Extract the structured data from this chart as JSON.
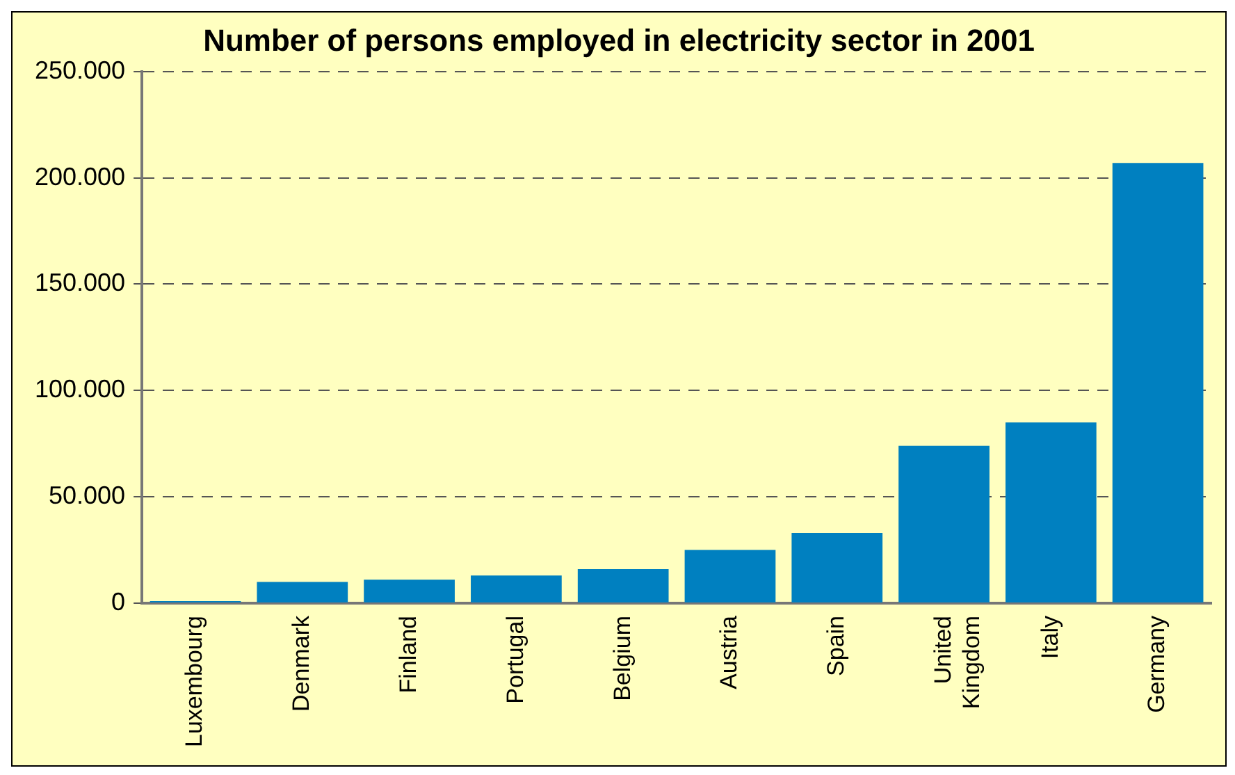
{
  "chart_data": {
    "type": "bar",
    "title": "Number of persons employed in electricity sector in 2001",
    "categories": [
      "Luxembourg",
      "Denmark",
      "Finland",
      "Portugal",
      "Belgium",
      "Austria",
      "Spain",
      "United Kingdom",
      "Italy",
      "Germany"
    ],
    "values": [
      1000,
      10000,
      11000,
      13000,
      16000,
      25000,
      33000,
      74000,
      85000,
      207000
    ],
    "color": "#0080c0",
    "ylim": [
      0,
      250000
    ],
    "yticks": [
      {
        "value": 0,
        "label": "0"
      },
      {
        "value": 50000,
        "label": "50.000"
      },
      {
        "value": 100000,
        "label": "100.000"
      },
      {
        "value": 150000,
        "label": "150.000"
      },
      {
        "value": 200000,
        "label": "200.000"
      },
      {
        "value": 250000,
        "label": "250.000"
      }
    ],
    "grid": "y",
    "legend": false
  }
}
